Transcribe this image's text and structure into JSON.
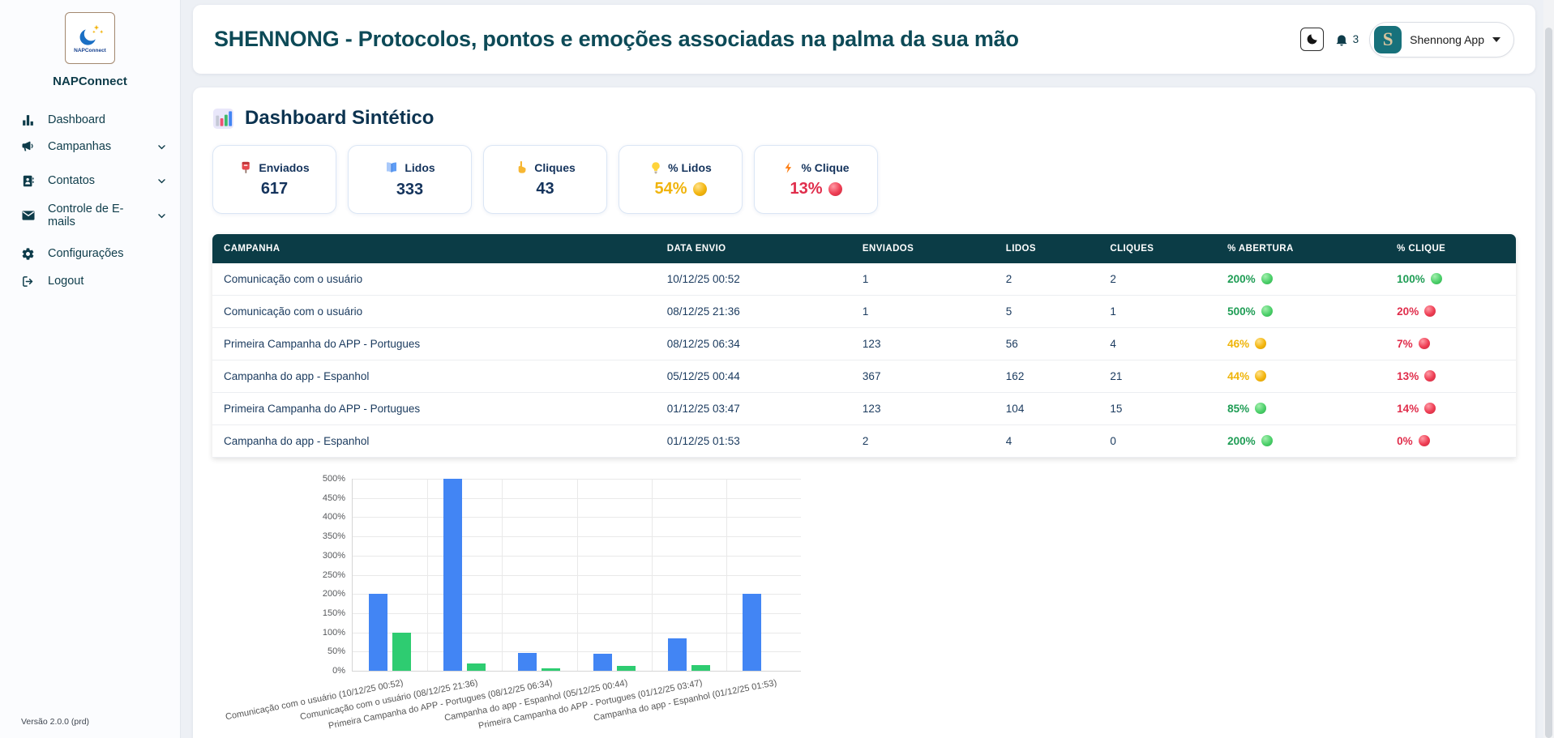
{
  "app": {
    "version": "Versão 2.0.0 (prd)"
  },
  "sidebar": {
    "logo_text": "NAPConnect",
    "brand": "NAPConnect",
    "items": [
      {
        "label": "Dashboard",
        "icon": "bar-chart",
        "expandable": false
      },
      {
        "label": "Campanhas",
        "icon": "megaphone",
        "expandable": true
      },
      {
        "label": "Contatos",
        "icon": "contacts",
        "expandable": true
      },
      {
        "label": "Controle de E-mails",
        "icon": "envelope",
        "expandable": true
      },
      {
        "label": "Configurações",
        "icon": "gear",
        "expandable": false
      },
      {
        "label": "Logout",
        "icon": "logout",
        "expandable": false
      }
    ]
  },
  "header": {
    "title": "SHENNONG - Protocolos, pontos e emoções associadas na palma da sua mão",
    "theme_icon": "moon-icon",
    "notification_icon": "bell-icon",
    "notification_count": "3",
    "profile_name": "Shennong App",
    "avatar_letter": "S"
  },
  "main": {
    "section_title": "Dashboard Sintético",
    "kpis": [
      {
        "label": "Enviados",
        "value": "617",
        "icon": "postbox",
        "value_color": "navy"
      },
      {
        "label": "Lidos",
        "value": "333",
        "icon": "open-book",
        "value_color": "navy"
      },
      {
        "label": "Cliques",
        "value": "43",
        "icon": "pointing-hand",
        "value_color": "navy"
      },
      {
        "label": "% Lidos",
        "value": "54%",
        "icon": "light-bulb",
        "value_color": "yellow",
        "sphere": "yellow"
      },
      {
        "label": "% Clique",
        "value": "13%",
        "icon": "lightning",
        "value_color": "red",
        "sphere": "red"
      }
    ],
    "table": {
      "columns": [
        "CAMPANHA",
        "DATA ENVIO",
        "ENVIADOS",
        "LIDOS",
        "CLIQUES",
        "% ABERTURA",
        "% CLIQUE"
      ],
      "rows": [
        {
          "campanha": "Comunicação com o usuário",
          "data_envio": "10/12/25 00:52",
          "enviados": "1",
          "lidos": "2",
          "cliques": "2",
          "abertura": {
            "value": "200%",
            "status": "green"
          },
          "clique": {
            "value": "100%",
            "status": "green"
          }
        },
        {
          "campanha": "Comunicação com o usuário",
          "data_envio": "08/12/25 21:36",
          "enviados": "1",
          "lidos": "5",
          "cliques": "1",
          "abertura": {
            "value": "500%",
            "status": "green"
          },
          "clique": {
            "value": "20%",
            "status": "red"
          }
        },
        {
          "campanha": "Primeira Campanha do APP - Portugues",
          "data_envio": "08/12/25 06:34",
          "enviados": "123",
          "lidos": "56",
          "cliques": "4",
          "abertura": {
            "value": "46%",
            "status": "yellow"
          },
          "clique": {
            "value": "7%",
            "status": "red"
          }
        },
        {
          "campanha": "Campanha do app - Espanhol",
          "data_envio": "05/12/25 00:44",
          "enviados": "367",
          "lidos": "162",
          "cliques": "21",
          "abertura": {
            "value": "44%",
            "status": "yellow"
          },
          "clique": {
            "value": "13%",
            "status": "red"
          }
        },
        {
          "campanha": "Primeira Campanha do APP - Portugues",
          "data_envio": "01/12/25 03:47",
          "enviados": "123",
          "lidos": "104",
          "cliques": "15",
          "abertura": {
            "value": "85%",
            "status": "green"
          },
          "clique": {
            "value": "14%",
            "status": "red"
          }
        },
        {
          "campanha": "Campanha do app - Espanhol",
          "data_envio": "01/12/25 01:53",
          "enviados": "2",
          "lidos": "4",
          "cliques": "0",
          "abertura": {
            "value": "200%",
            "status": "green"
          },
          "clique": {
            "value": "0%",
            "status": "red"
          }
        }
      ]
    }
  },
  "chart_data": {
    "type": "bar",
    "categories": [
      "Comunicação com o usuário (10/12/25 00:52)",
      "Comunicação com o usuário (08/12/25 21:36)",
      "Primeira Campanha do APP - Portugues (08/12/25 06:34)",
      "Campanha do app - Espanhol (05/12/25 00:44)",
      "Primeira Campanha do APP - Portugues (01/12/25 03:47)",
      "Campanha do app - Espanhol (01/12/25 01:53)"
    ],
    "series": [
      {
        "name": "% Abertura",
        "color": "#4285f4",
        "values": [
          200,
          500,
          46,
          44,
          85,
          200
        ]
      },
      {
        "name": "% Clique",
        "color": "#2ecc71",
        "values": [
          100,
          20,
          7,
          13,
          14,
          0
        ]
      }
    ],
    "title": "",
    "xlabel": "",
    "ylabel": "",
    "ylim": [
      0,
      500
    ],
    "ytick_step": 50,
    "ytick_suffix": "%",
    "grid": true,
    "legend_position": "none"
  },
  "colors": {
    "accent_teal": "#0b3c46",
    "title_teal": "#0d4a57",
    "green": "#1f9d55",
    "red": "#e02d4b",
    "yellow": "#f0b40d",
    "bar_blue": "#4285f4",
    "bar_green": "#2ecc71"
  }
}
